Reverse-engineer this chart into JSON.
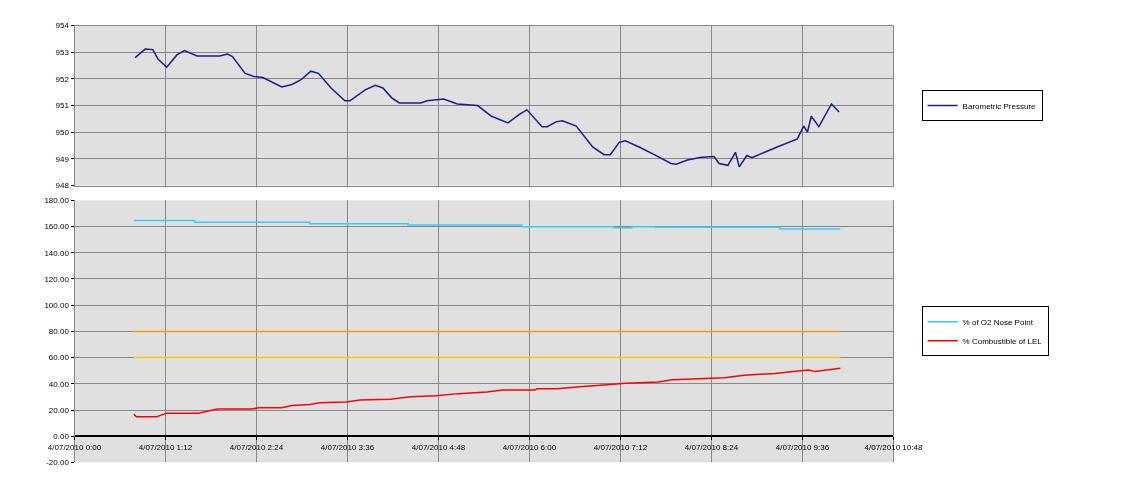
{
  "chart_data": [
    {
      "type": "line",
      "tick_labels": "y",
      "grid": true,
      "legend": "right",
      "marker": "none",
      "line_style": "solid",
      "xlim": [
        "2010-07-04T00:00",
        "2010-07-04T10:48"
      ],
      "xticks": [
        {
          "value": "2010-07-04T00:00",
          "label": null
        },
        {
          "value": "2010-07-04T01:12",
          "label": null
        },
        {
          "value": "2010-07-04T02:24",
          "label": null
        },
        {
          "value": "2010-07-04T03:36",
          "label": null
        },
        {
          "value": "2010-07-04T04:48",
          "label": null
        },
        {
          "value": "2010-07-04T06:00",
          "label": null
        },
        {
          "value": "2010-07-04T07:12",
          "label": null
        },
        {
          "value": "2010-07-04T08:24",
          "label": null
        },
        {
          "value": "2010-07-04T09:36",
          "label": null
        },
        {
          "value": "2010-07-04T10:48",
          "label": null
        }
      ],
      "ylim": [
        948,
        954
      ],
      "yticks": [
        948,
        949,
        950,
        951,
        952,
        953,
        954
      ],
      "series": [
        {
          "name": "Barometric Pressure",
          "color": "#1c1c8c",
          "x": [
            "2010-07-04T00:48",
            "2010-07-04T00:54",
            "2010-07-04T00:56",
            "2010-07-04T01:02",
            "2010-07-04T01:06",
            "2010-07-04T01:13",
            "2010-07-04T01:21",
            "2010-07-04T01:27",
            "2010-07-04T01:37",
            "2010-07-04T01:55",
            "2010-07-04T02:01",
            "2010-07-04T02:05",
            "2010-07-04T02:15",
            "2010-07-04T02:22",
            "2010-07-04T02:29",
            "2010-07-04T02:44",
            "2010-07-04T02:52",
            "2010-07-04T02:59",
            "2010-07-04T03:07",
            "2010-07-04T03:13",
            "2010-07-04T03:23",
            "2010-07-04T03:34",
            "2010-07-04T03:38",
            "2010-07-04T03:50",
            "2010-07-04T03:58",
            "2010-07-04T04:04",
            "2010-07-04T04:11",
            "2010-07-04T04:17",
            "2010-07-04T04:34",
            "2010-07-04T04:39",
            "2010-07-04T04:52",
            "2010-07-04T05:03",
            "2010-07-04T05:19",
            "2010-07-04T05:30",
            "2010-07-04T05:43",
            "2010-07-04T05:52",
            "2010-07-04T05:58",
            "2010-07-04T06:10",
            "2010-07-04T06:14",
            "2010-07-04T06:21",
            "2010-07-04T06:26",
            "2010-07-04T06:37",
            "2010-07-04T06:50",
            "2010-07-04T06:59",
            "2010-07-04T07:04",
            "2010-07-04T07:11",
            "2010-07-04T07:16",
            "2010-07-04T07:28",
            "2010-07-04T07:38",
            "2010-07-04T07:52",
            "2010-07-04T07:56",
            "2010-07-04T08:05",
            "2010-07-04T08:16",
            "2010-07-04T08:26",
            "2010-07-04T08:30",
            "2010-07-04T08:37",
            "2010-07-04T08:43",
            "2010-07-04T08:46",
            "2010-07-04T08:52",
            "2010-07-04T08:56",
            "2010-07-04T09:16",
            "2010-07-04T09:32",
            "2010-07-04T09:37",
            "2010-07-04T09:40",
            "2010-07-04T09:43",
            "2010-07-04T09:49",
            "2010-07-04T09:59",
            "2010-07-04T10:05"
          ],
          "values": [
            952.8,
            953.04,
            953.12,
            953.1,
            952.75,
            952.44,
            952.9,
            953.06,
            952.86,
            952.86,
            952.93,
            952.84,
            952.21,
            952.09,
            952.05,
            951.7,
            951.79,
            951.96,
            952.29,
            952.21,
            951.66,
            951.18,
            951.18,
            951.59,
            951.76,
            951.66,
            951.29,
            951.1,
            951.1,
            951.18,
            951.25,
            951.06,
            951.0,
            950.6,
            950.35,
            950.67,
            950.84,
            950.21,
            950.21,
            950.39,
            950.43,
            950.23,
            949.45,
            949.16,
            949.16,
            949.62,
            949.68,
            949.42,
            949.18,
            948.83,
            948.8,
            948.96,
            949.06,
            949.09,
            948.83,
            948.76,
            949.25,
            948.7,
            949.13,
            949.05,
            949.45,
            949.75,
            950.23,
            950.01,
            950.6,
            950.21,
            951.06,
            950.76
          ]
        }
      ]
    },
    {
      "type": "line",
      "grid": true,
      "legend": "right",
      "marker": "none",
      "line_style": "solid",
      "xlim": [
        "2010-07-04T00:00",
        "2010-07-04T10:48"
      ],
      "xticks": [
        {
          "value": "2010-07-04T00:00",
          "label": "4/07/2010 0:00"
        },
        {
          "value": "2010-07-04T01:12",
          "label": "4/07/2010 1:12"
        },
        {
          "value": "2010-07-04T02:24",
          "label": "4/07/2010 2:24"
        },
        {
          "value": "2010-07-04T03:36",
          "label": "4/07/2010 3:36"
        },
        {
          "value": "2010-07-04T04:48",
          "label": "4/07/2010 4:48"
        },
        {
          "value": "2010-07-04T06:00",
          "label": "4/07/2010 6:00"
        },
        {
          "value": "2010-07-04T07:12",
          "label": "4/07/2010 7:12"
        },
        {
          "value": "2010-07-04T08:24",
          "label": "4/07/2010 8:24"
        },
        {
          "value": "2010-07-04T09:36",
          "label": "4/07/2010 9:36"
        },
        {
          "value": "2010-07-04T10:48",
          "label": "4/07/2010 10:48"
        }
      ],
      "ylim": [
        -20,
        180
      ],
      "yticks": [
        {
          "value": -20,
          "label": "-20.00"
        },
        {
          "value": 0,
          "label": "0.00"
        },
        {
          "value": 20,
          "label": "20.00"
        },
        {
          "value": 40,
          "label": "40.00"
        },
        {
          "value": 60,
          "label": "60.00"
        },
        {
          "value": 80,
          "label": "80.00"
        },
        {
          "value": 100,
          "label": "100.00"
        },
        {
          "value": 120,
          "label": "120.00"
        },
        {
          "value": 140,
          "label": "140.00"
        },
        {
          "value": 160,
          "label": "160.00"
        },
        {
          "value": 180,
          "label": "180.00"
        }
      ],
      "series": [
        {
          "name": "% of O2 Nose Point",
          "color": "#33ccff",
          "x": [
            "2010-07-04T00:47",
            "2010-07-04T01:35",
            "2010-07-04T01:35",
            "2010-07-04T03:06",
            "2010-07-04T03:06",
            "2010-07-04T04:24",
            "2010-07-04T04:24",
            "2010-07-04T05:54",
            "2010-07-04T05:54",
            "2010-07-04T07:07",
            "2010-07-04T07:07",
            "2010-07-04T07:21",
            "2010-07-04T07:21",
            "2010-07-04T07:40",
            "2010-07-04T07:40",
            "2010-07-04T09:18",
            "2010-07-04T09:18",
            "2010-07-04T10:06"
          ],
          "values": [
            164.6,
            164.6,
            163.2,
            163.2,
            162.2,
            162.2,
            161.1,
            161.1,
            159.8,
            159.8,
            159.0,
            159.0,
            159.8,
            159.8,
            159.4,
            159.4,
            158.1,
            158.1
          ]
        },
        {
          "name": "% Combustible of LEL",
          "color": "#ff0000",
          "x": [
            "2010-07-04T00:47",
            "2010-07-04T00:49",
            "2010-07-04T01:05",
            "2010-07-04T01:13",
            "2010-07-04T01:38",
            "2010-07-04T01:53",
            "2010-07-04T02:20",
            "2010-07-04T02:26",
            "2010-07-04T02:44",
            "2010-07-04T02:52",
            "2010-07-04T03:06",
            "2010-07-04T03:14",
            "2010-07-04T03:35",
            "2010-07-04T03:46",
            "2010-07-04T04:10",
            "2010-07-04T04:26",
            "2010-07-04T04:46",
            "2010-07-04T05:04",
            "2010-07-04T05:26",
            "2010-07-04T05:39",
            "2010-07-04T06:04",
            "2010-07-04T06:06",
            "2010-07-04T06:22",
            "2010-07-04T06:40",
            "2010-07-04T06:56",
            "2010-07-04T07:16",
            "2010-07-04T07:42",
            "2010-07-04T07:53",
            "2010-07-04T08:14",
            "2010-07-04T08:34",
            "2010-07-04T08:50",
            "2010-07-04T09:14",
            "2010-07-04T09:29",
            "2010-07-04T09:41",
            "2010-07-04T09:46",
            "2010-07-04T10:06"
          ],
          "values": [
            16.8,
            14.9,
            14.9,
            17.6,
            17.6,
            20.8,
            20.8,
            21.8,
            21.8,
            23.4,
            24.2,
            25.6,
            26.1,
            27.7,
            28.2,
            30.1,
            30.9,
            32.5,
            33.8,
            35.2,
            35.2,
            36.2,
            36.2,
            37.8,
            38.9,
            40.5,
            41.3,
            43.1,
            43.9,
            44.7,
            46.6,
            47.9,
            49.3,
            50.6,
            49.3,
            51.9
          ]
        },
        {
          "color": "#ff9900",
          "x": [
            "2010-07-04T00:47",
            "2010-07-04T10:06"
          ],
          "values": [
            80,
            80
          ]
        },
        {
          "color": "#ffcc00",
          "x": [
            "2010-07-04T00:47",
            "2010-07-04T10:06"
          ],
          "values": [
            60,
            60
          ]
        }
      ]
    }
  ]
}
